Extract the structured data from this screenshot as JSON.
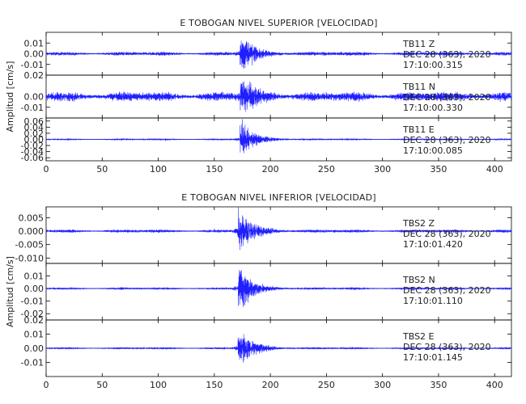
{
  "chart_data": [
    {
      "type": "line",
      "title": "E TOBOGAN NIVEL SUPERIOR [VELOCIDAD]",
      "ylabel": "Amplitud [cm/s]",
      "xlim": [
        0,
        415
      ],
      "x_ticks": [
        "0",
        "50",
        "100",
        "150",
        "200",
        "250",
        "300",
        "350",
        "400"
      ],
      "line_color": "#1f1fff",
      "panels": [
        {
          "station": "TB11",
          "component": "Z",
          "date": "DEC 28 (363), 2020",
          "time": "17:10:00.315",
          "ylim": [
            -0.02,
            0.02
          ],
          "y_ticks": [
            "0.01",
            "0.00",
            "-0.01"
          ],
          "onset_s": 173,
          "peak_cm_s": 0.017,
          "noise_cm_s": 0.0012
        },
        {
          "station": "TB11",
          "component": "N",
          "date": "DEC 28 (363), 2020",
          "time": "17:10:00.330",
          "ylim": [
            -0.02,
            0.02
          ],
          "y_ticks": [
            "0.02",
            "0.00",
            "-0.01"
          ],
          "onset_s": 173,
          "peak_cm_s": 0.016,
          "noise_cm_s": 0.003
        },
        {
          "station": "TB11",
          "component": "E",
          "date": "DEC 28 (363), 2020",
          "time": "17:10:00.085",
          "ylim": [
            -0.07,
            0.07
          ],
          "y_ticks": [
            "0.06",
            "0.04",
            "0.02",
            "0.00",
            "-0.02",
            "-0.04",
            "-0.06"
          ],
          "onset_s": 173,
          "peak_cm_s": 0.06,
          "noise_cm_s": 0.002
        }
      ]
    },
    {
      "type": "line",
      "title": "E TOBOGAN NIVEL INFERIOR [VELOCIDAD]",
      "ylabel": "Amplitud [cm/s]",
      "xlim": [
        0,
        415
      ],
      "x_ticks": [
        "0",
        "50",
        "100",
        "150",
        "200",
        "250",
        "300",
        "350",
        "400"
      ],
      "line_color": "#1f1fff",
      "panels": [
        {
          "station": "TBS2",
          "component": "Z",
          "date": "DEC 28 (363), 2020",
          "time": "17:10:01.420",
          "ylim": [
            -0.012,
            0.009
          ],
          "y_ticks": [
            "0.005",
            "0.000",
            "-0.005",
            "-0.010"
          ],
          "onset_s": 171,
          "peak_cm_s": 0.0085,
          "noise_cm_s": 0.0004
        },
        {
          "station": "TBS2",
          "component": "N",
          "date": "DEC 28 (363), 2020",
          "time": "17:10:01.110",
          "ylim": [
            -0.025,
            0.02
          ],
          "y_ticks": [
            "0.01",
            "0.00",
            "-0.01",
            "-0.02"
          ],
          "onset_s": 171,
          "peak_cm_s": 0.019,
          "noise_cm_s": 0.0006
        },
        {
          "station": "TBS2",
          "component": "E",
          "date": "DEC 28 (363), 2020",
          "time": "17:10:01.145",
          "ylim": [
            -0.02,
            0.02
          ],
          "y_ticks": [
            "0.02",
            "0.01",
            "0.00",
            "-0.01"
          ],
          "onset_s": 171,
          "peak_cm_s": 0.015,
          "noise_cm_s": 0.0005
        }
      ]
    }
  ]
}
